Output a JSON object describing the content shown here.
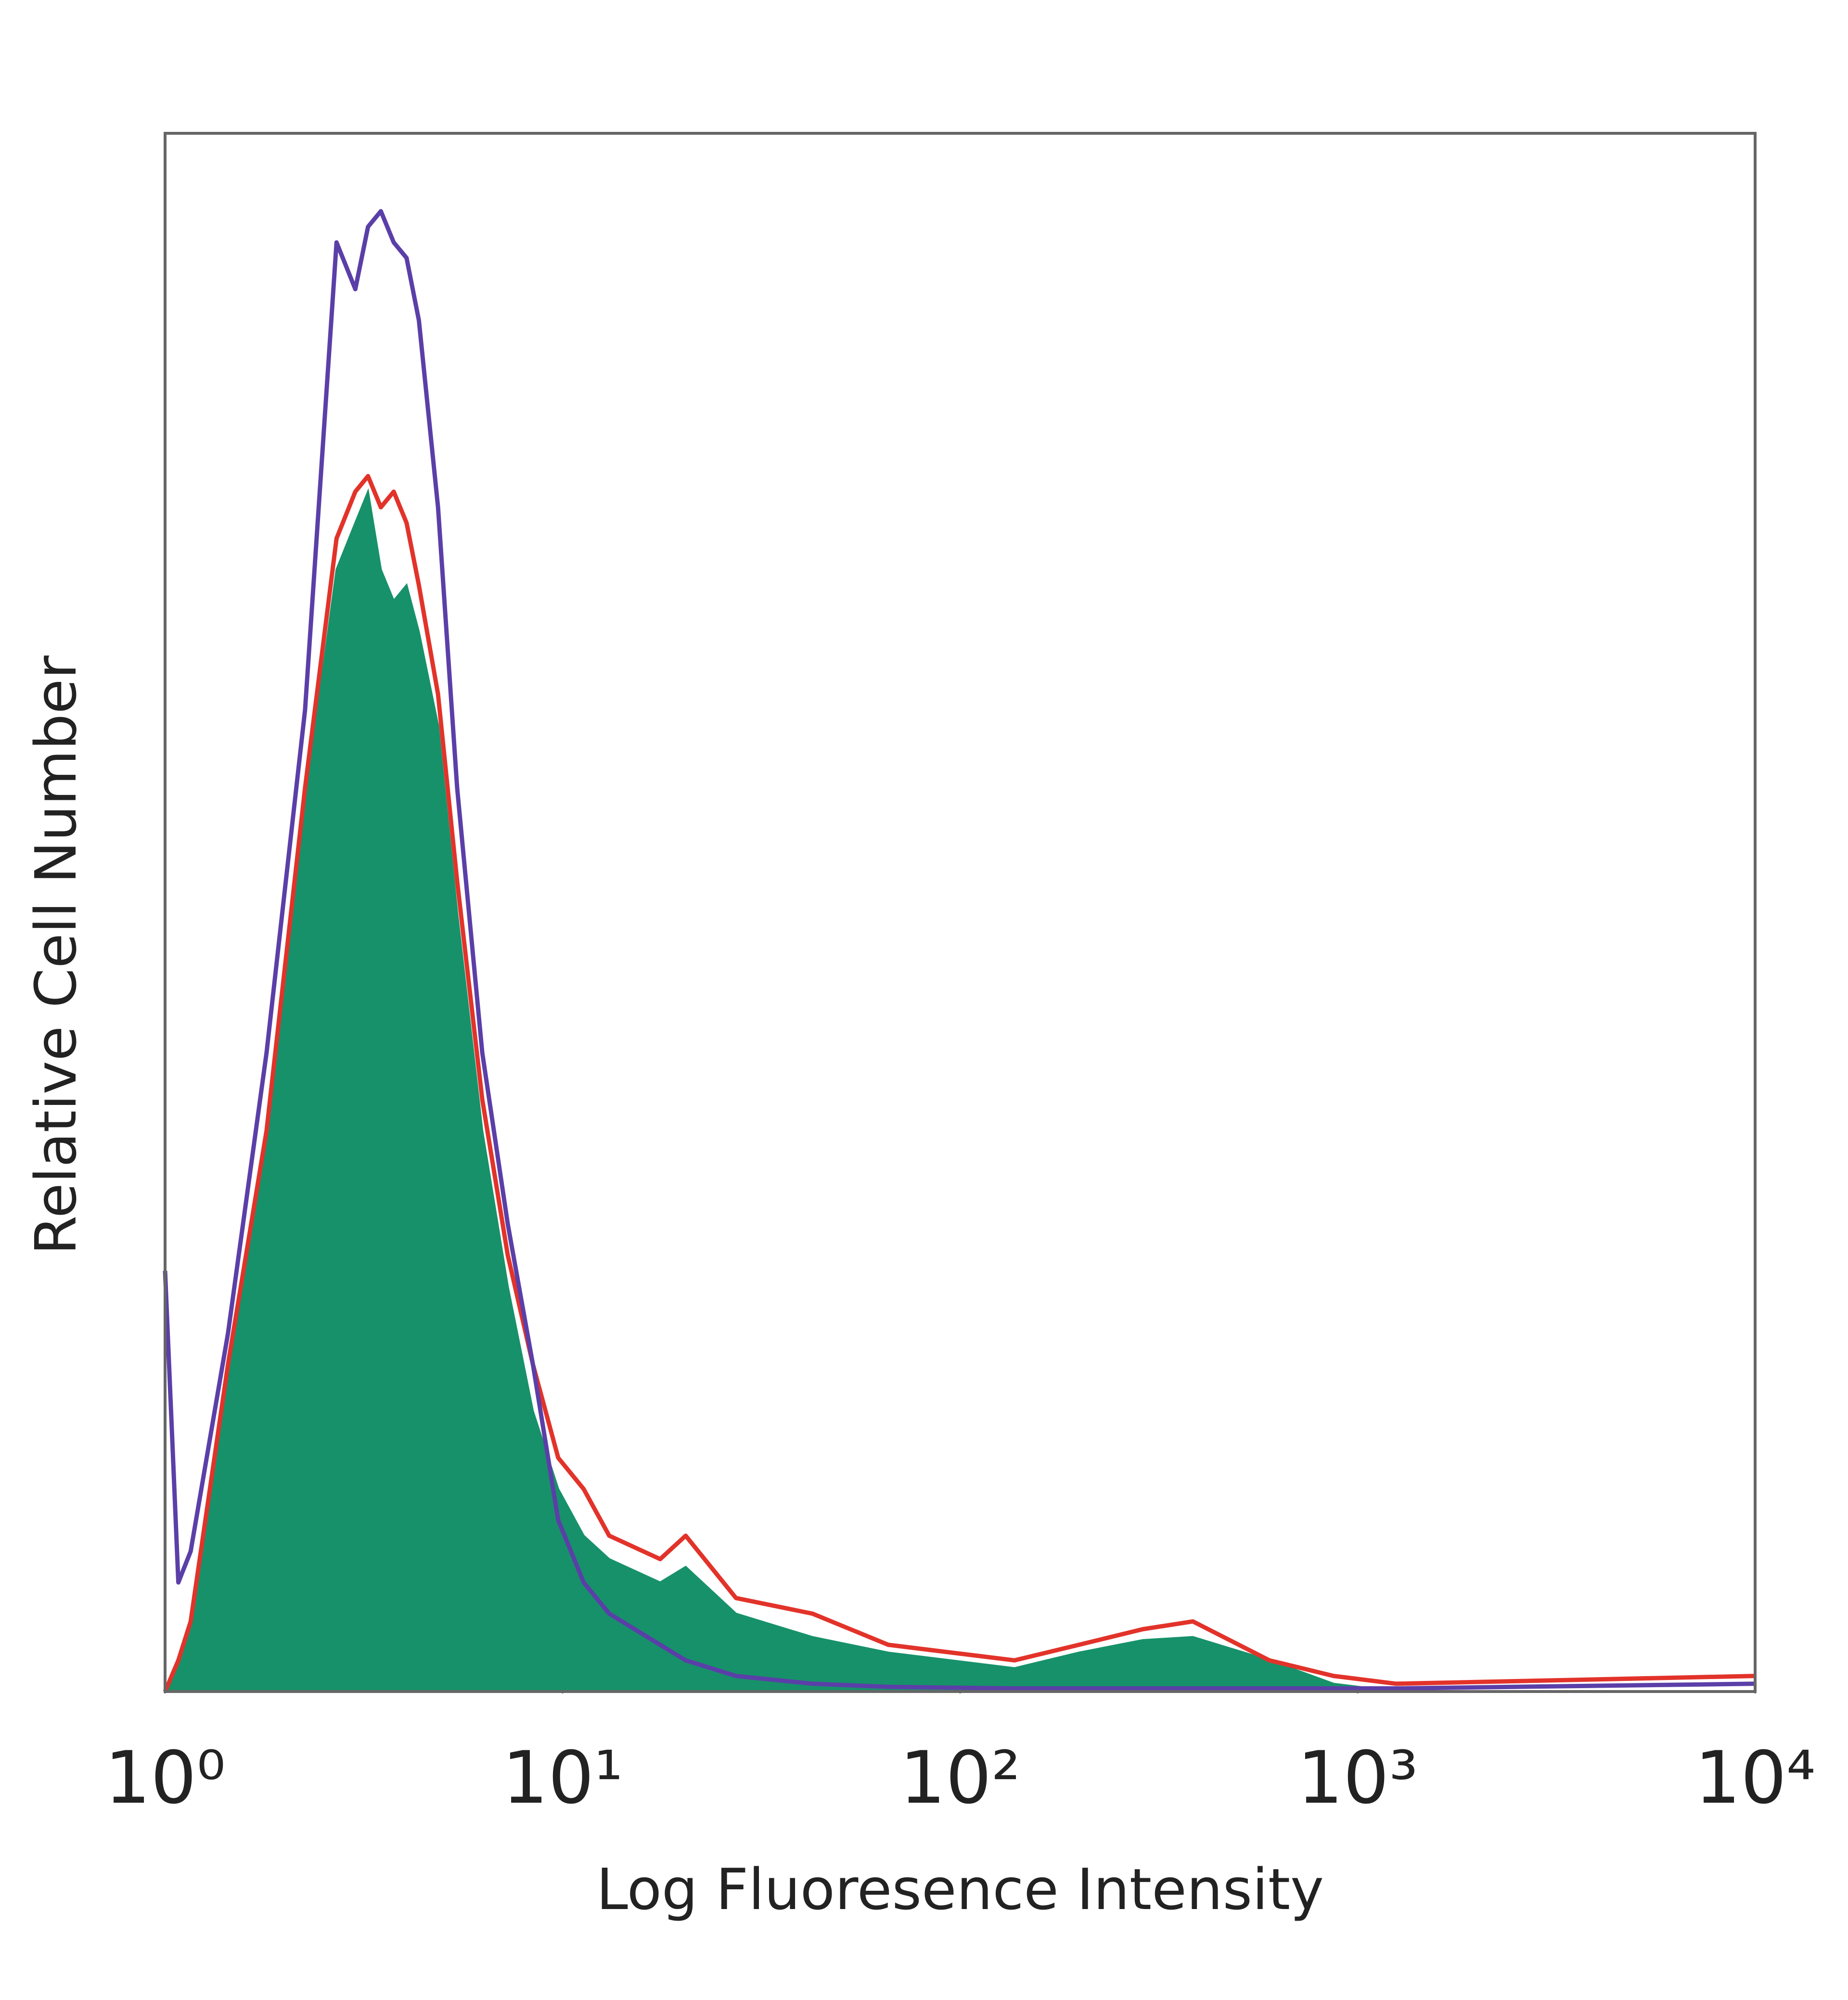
{
  "chart_data": {
    "type": "line",
    "xlabel": "Log Fluoresence Intensity",
    "ylabel": "Relative Cell Number",
    "xscale": "log",
    "xlim": [
      1,
      10000
    ],
    "xticks": [
      {
        "value": 1,
        "label": "10⁰"
      },
      {
        "value": 10,
        "label": "10¹"
      },
      {
        "value": 100,
        "label": "10²"
      },
      {
        "value": 1000,
        "label": "10³"
      },
      {
        "value": 10000,
        "label": "10⁴"
      }
    ],
    "ylim": [
      0,
      100
    ],
    "x": [
      1,
      1.08,
      1.16,
      1.44,
      1.8,
      2.25,
      2.7,
      3.01,
      3.24,
      3.49,
      3.76,
      4.05,
      4.35,
      4.86,
      5.43,
      6.28,
      7.28,
      8.42,
      9.75,
      11.3,
      13.1,
      17.6,
      20.4,
      27.3,
      42.5,
      66,
      137,
      199,
      288,
      385,
      600,
      870,
      1250,
      10000
    ],
    "series": [
      {
        "color": "#17916a",
        "filled": true,
        "values": [
          0,
          2,
          4,
          20,
          35,
          57,
          72,
          75,
          77,
          72,
          70,
          71,
          68,
          62,
          50,
          36,
          26,
          18,
          13,
          10,
          8.5,
          7,
          8,
          5,
          3.5,
          2.5,
          1.5,
          2.5,
          3.3,
          3.5,
          2,
          0.5,
          0,
          0
        ]
      },
      {
        "color": "#e2332a",
        "filled": false,
        "values": [
          0,
          2,
          4.5,
          21,
          36,
          58,
          74,
          77,
          78,
          76,
          77,
          75,
          71,
          64,
          52,
          38,
          28,
          21,
          15,
          13,
          10,
          8.5,
          10,
          6,
          5,
          3,
          2,
          3,
          4,
          4.5,
          2,
          1,
          0.5,
          1
        ]
      },
      {
        "color": "#5b3fa8",
        "filled": false,
        "values": [
          27,
          7,
          9,
          23,
          41,
          63,
          93,
          90,
          94,
          95,
          93,
          92,
          88,
          76,
          58,
          41,
          30,
          21,
          11,
          7,
          5,
          3,
          2,
          1,
          0.5,
          0.3,
          0.2,
          0.2,
          0.2,
          0.2,
          0.2,
          0.2,
          0.2,
          0.5
        ]
      }
    ]
  }
}
